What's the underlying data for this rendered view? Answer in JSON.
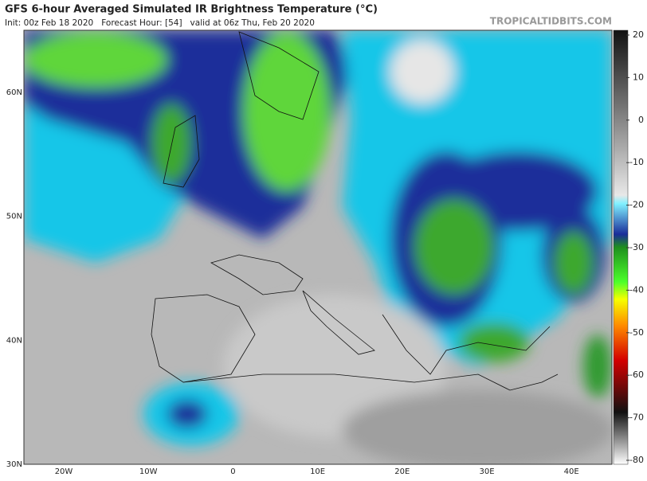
{
  "header": {
    "title": "GFS 6-hour Averaged Simulated IR Brightness Temperature (°C)",
    "subtitle": "Init: 00z Feb 18 2020   Forecast Hour: [54]   valid at 06z Thu, Feb 20 2020",
    "site": "TROPICALTIDBITS.COM"
  },
  "map": {
    "lat_labels": [
      "60N",
      "50N",
      "40N",
      "30N"
    ],
    "lon_labels": [
      "20W",
      "10W",
      "0",
      "10E",
      "20E",
      "30E",
      "40E"
    ]
  },
  "colorbar": {
    "lim": [
      -80,
      20
    ],
    "ticks": [
      20,
      10,
      0,
      -10,
      -20,
      -30,
      -40,
      -50,
      -60,
      -70,
      -80
    ]
  }
}
